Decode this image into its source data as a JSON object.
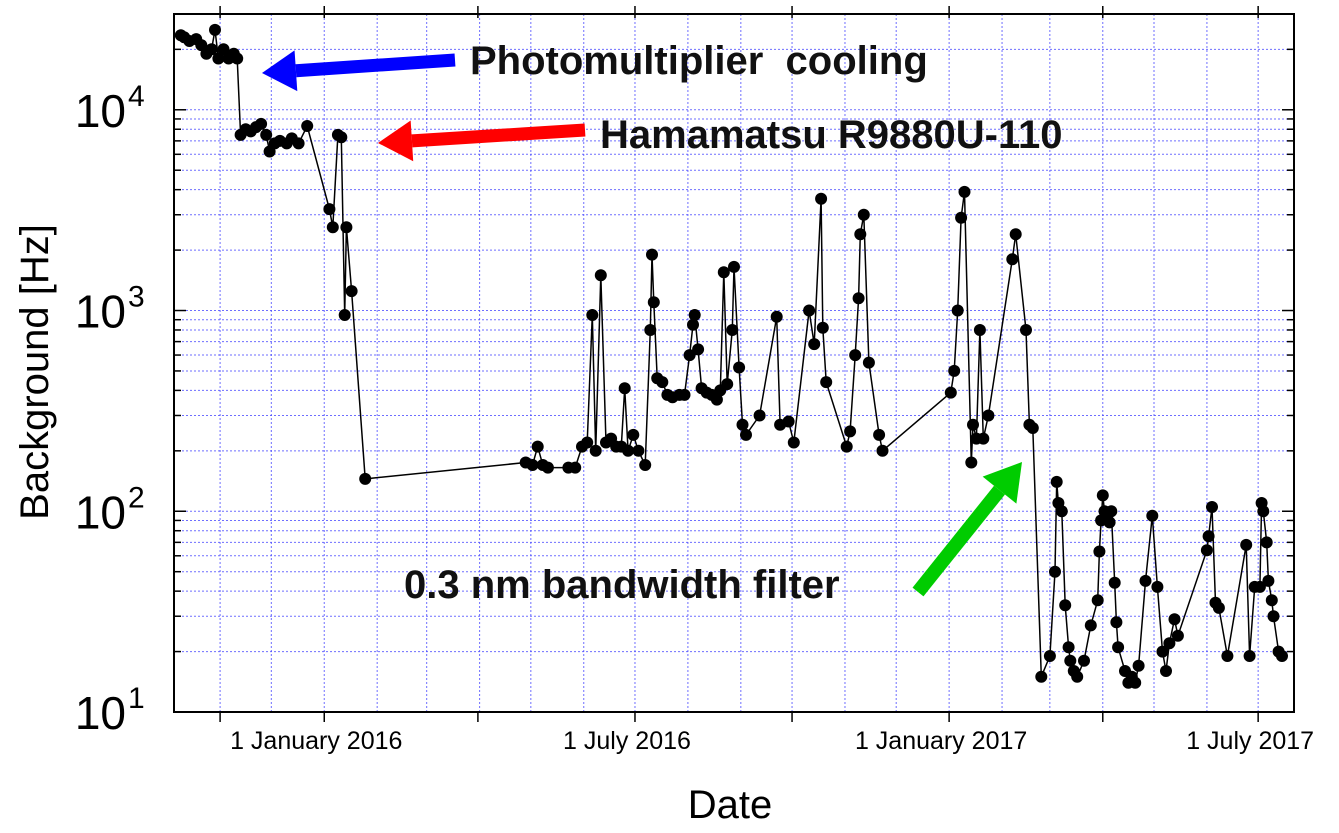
{
  "chart_data": {
    "type": "line",
    "title": "",
    "xlabel": "Date",
    "ylabel": "Background [Hz]",
    "yscale": "log",
    "ylim": [
      10,
      30000
    ],
    "xlim": [
      "2015-10-05",
      "2017-07-22"
    ],
    "grid": true,
    "x_ticks": [
      {
        "date": "2015-11-01",
        "label": ""
      },
      {
        "date": "2016-01-01",
        "label": "1 January 2016"
      },
      {
        "date": "2016-03-31",
        "label": ""
      },
      {
        "date": "2016-07-01",
        "label": "1 July 2016"
      },
      {
        "date": "2016-10-01",
        "label": ""
      },
      {
        "date": "2017-01-01",
        "label": "1 January 2017"
      },
      {
        "date": "2017-04-01",
        "label": ""
      },
      {
        "date": "2017-07-01",
        "label": "1 July 2017"
      }
    ],
    "y_ticks": [
      {
        "value": 10,
        "base": "10",
        "exp": "1"
      },
      {
        "value": 100,
        "base": "10",
        "exp": "2"
      },
      {
        "value": 1000,
        "base": "10",
        "exp": "3"
      },
      {
        "value": 10000,
        "base": "10",
        "exp": "4"
      }
    ],
    "series": [
      {
        "color": "#000000",
        "points": [
          [
            "2015-10-09",
            23500
          ],
          [
            "2015-10-11",
            23000
          ],
          [
            "2015-10-14",
            22000
          ],
          [
            "2015-10-18",
            22500
          ],
          [
            "2015-10-21",
            21000
          ],
          [
            "2015-10-24",
            19000
          ],
          [
            "2015-10-27",
            20000
          ],
          [
            "2015-10-29",
            25000
          ],
          [
            "2015-10-31",
            18000
          ],
          [
            "2015-11-03",
            20000
          ],
          [
            "2015-11-06",
            18000
          ],
          [
            "2015-11-09",
            19000
          ],
          [
            "2015-11-11",
            18000
          ],
          [
            "2015-11-13",
            7500
          ],
          [
            "2015-11-16",
            8000
          ],
          [
            "2015-11-19",
            7800
          ],
          [
            "2015-11-22",
            8200
          ],
          [
            "2015-11-25",
            8500
          ],
          [
            "2015-11-28",
            7500
          ],
          [
            "2015-11-30",
            6200
          ],
          [
            "2015-12-03",
            6800
          ],
          [
            "2015-12-06",
            7000
          ],
          [
            "2015-12-10",
            6800
          ],
          [
            "2015-12-13",
            7200
          ],
          [
            "2015-12-17",
            6800
          ],
          [
            "2015-12-22",
            8300
          ],
          [
            "2016-01-04",
            3200
          ],
          [
            "2016-01-06",
            2600
          ],
          [
            "2016-01-09",
            7500
          ],
          [
            "2016-01-11",
            7300
          ],
          [
            "2016-01-13",
            950
          ],
          [
            "2016-01-14",
            2600
          ],
          [
            "2016-01-17",
            1250
          ],
          [
            "2016-01-25",
            145
          ],
          [
            "2016-04-28",
            175
          ],
          [
            "2016-05-02",
            170
          ],
          [
            "2016-05-05",
            210
          ],
          [
            "2016-05-08",
            170
          ],
          [
            "2016-05-11",
            165
          ],
          [
            "2016-05-23",
            165
          ],
          [
            "2016-05-27",
            165
          ],
          [
            "2016-05-31",
            210
          ],
          [
            "2016-06-03",
            220
          ],
          [
            "2016-06-06",
            950
          ],
          [
            "2016-06-08",
            200
          ],
          [
            "2016-06-11",
            1500
          ],
          [
            "2016-06-14",
            220
          ],
          [
            "2016-06-17",
            230
          ],
          [
            "2016-06-20",
            210
          ],
          [
            "2016-06-23",
            210
          ],
          [
            "2016-06-25",
            410
          ],
          [
            "2016-06-27",
            200
          ],
          [
            "2016-06-30",
            240
          ],
          [
            "2016-07-03",
            200
          ],
          [
            "2016-07-07",
            170
          ],
          [
            "2016-07-10",
            800
          ],
          [
            "2016-07-11",
            1900
          ],
          [
            "2016-07-12",
            1100
          ],
          [
            "2016-07-14",
            460
          ],
          [
            "2016-07-17",
            440
          ],
          [
            "2016-07-20",
            380
          ],
          [
            "2016-07-23",
            370
          ],
          [
            "2016-07-27",
            380
          ],
          [
            "2016-07-30",
            380
          ],
          [
            "2016-08-02",
            600
          ],
          [
            "2016-08-04",
            850
          ],
          [
            "2016-08-05",
            950
          ],
          [
            "2016-08-07",
            640
          ],
          [
            "2016-08-09",
            410
          ],
          [
            "2016-08-12",
            390
          ],
          [
            "2016-08-15",
            380
          ],
          [
            "2016-08-18",
            360
          ],
          [
            "2016-08-20",
            400
          ],
          [
            "2016-08-22",
            1550
          ],
          [
            "2016-08-24",
            430
          ],
          [
            "2016-08-27",
            800
          ],
          [
            "2016-08-28",
            1650
          ],
          [
            "2016-08-31",
            520
          ],
          [
            "2016-09-02",
            270
          ],
          [
            "2016-09-04",
            240
          ],
          [
            "2016-09-12",
            300
          ],
          [
            "2016-09-22",
            930
          ],
          [
            "2016-09-24",
            270
          ],
          [
            "2016-09-29",
            280
          ],
          [
            "2016-10-02",
            220
          ],
          [
            "2016-10-11",
            1000
          ],
          [
            "2016-10-14",
            680
          ],
          [
            "2016-10-18",
            3600
          ],
          [
            "2016-10-19",
            820
          ],
          [
            "2016-10-21",
            440
          ],
          [
            "2016-11-02",
            210
          ],
          [
            "2016-11-04",
            250
          ],
          [
            "2016-11-07",
            600
          ],
          [
            "2016-11-09",
            1150
          ],
          [
            "2016-11-10",
            2400
          ],
          [
            "2016-11-12",
            3000
          ],
          [
            "2016-11-15",
            550
          ],
          [
            "2016-11-21",
            240
          ],
          [
            "2016-11-23",
            200
          ],
          [
            "2017-01-02",
            390
          ],
          [
            "2017-01-04",
            500
          ],
          [
            "2017-01-06",
            1000
          ],
          [
            "2017-01-08",
            2900
          ],
          [
            "2017-01-10",
            3900
          ],
          [
            "2017-01-14",
            175
          ],
          [
            "2017-01-15",
            270
          ],
          [
            "2017-01-17",
            230
          ],
          [
            "2017-01-19",
            800
          ],
          [
            "2017-01-21",
            230
          ],
          [
            "2017-01-24",
            300
          ],
          [
            "2017-02-07",
            1800
          ],
          [
            "2017-02-09",
            2400
          ],
          [
            "2017-02-15",
            800
          ],
          [
            "2017-02-17",
            270
          ],
          [
            "2017-02-19",
            260
          ],
          [
            "2017-02-24",
            15
          ],
          [
            "2017-03-01",
            19
          ],
          [
            "2017-03-04",
            50
          ],
          [
            "2017-03-05",
            140
          ],
          [
            "2017-03-06",
            110
          ],
          [
            "2017-03-08",
            100
          ],
          [
            "2017-03-10",
            34
          ],
          [
            "2017-03-12",
            21
          ],
          [
            "2017-03-13",
            18
          ],
          [
            "2017-03-15",
            16
          ],
          [
            "2017-03-17",
            15
          ],
          [
            "2017-03-21",
            18
          ],
          [
            "2017-03-25",
            27
          ],
          [
            "2017-03-29",
            36
          ],
          [
            "2017-03-30",
            63
          ],
          [
            "2017-03-31",
            90
          ],
          [
            "2017-04-01",
            120
          ],
          [
            "2017-04-02",
            100
          ],
          [
            "2017-04-04",
            90
          ],
          [
            "2017-04-05",
            88
          ],
          [
            "2017-04-06",
            100
          ],
          [
            "2017-04-08",
            44
          ],
          [
            "2017-04-09",
            28
          ],
          [
            "2017-04-10",
            21
          ],
          [
            "2017-04-14",
            16
          ],
          [
            "2017-04-16",
            14
          ],
          [
            "2017-04-18",
            15
          ],
          [
            "2017-04-20",
            14
          ],
          [
            "2017-04-22",
            17
          ],
          [
            "2017-04-26",
            45
          ],
          [
            "2017-04-30",
            95
          ],
          [
            "2017-05-03",
            42
          ],
          [
            "2017-05-06",
            20
          ],
          [
            "2017-05-08",
            16
          ],
          [
            "2017-05-10",
            22
          ],
          [
            "2017-05-13",
            29
          ],
          [
            "2017-05-15",
            24
          ],
          [
            "2017-06-01",
            64
          ],
          [
            "2017-06-02",
            75
          ],
          [
            "2017-06-04",
            105
          ],
          [
            "2017-06-06",
            35
          ],
          [
            "2017-06-08",
            33
          ],
          [
            "2017-06-13",
            19
          ],
          [
            "2017-06-24",
            68
          ],
          [
            "2017-06-26",
            19
          ],
          [
            "2017-06-29",
            42
          ],
          [
            "2017-07-02",
            42
          ],
          [
            "2017-07-03",
            110
          ],
          [
            "2017-07-04",
            100
          ],
          [
            "2017-07-06",
            70
          ],
          [
            "2017-07-07",
            45
          ],
          [
            "2017-07-09",
            36
          ],
          [
            "2017-07-10",
            30
          ],
          [
            "2017-07-13",
            20
          ],
          [
            "2017-07-15",
            19
          ]
        ]
      }
    ],
    "annotations": [
      {
        "text": "Photomultiplier  cooling",
        "color": "#0000ff"
      },
      {
        "text": "Hamamatsu R9880U-110",
        "color": "#ff0000"
      },
      {
        "text": "0.3 nm bandwidth filter",
        "color": "#00cc00"
      }
    ]
  }
}
